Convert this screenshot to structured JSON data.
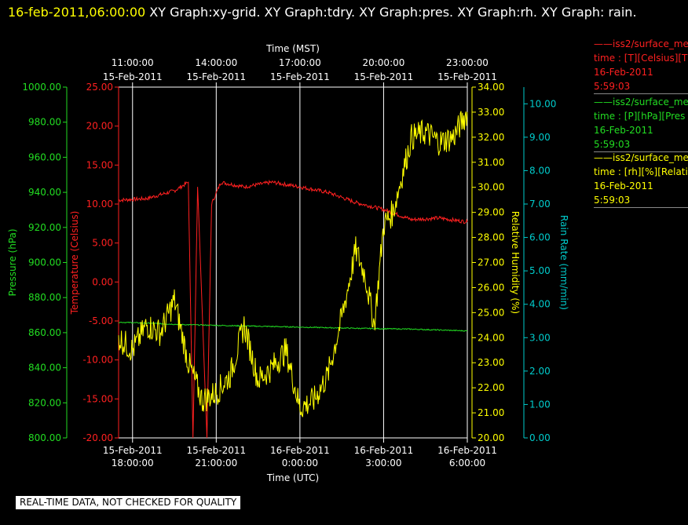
{
  "header": {
    "timestamp": "16-feb-2011,06:00:00",
    "title_rest": "  XY Graph:xy-grid.  XY Graph:tdry.  XY Graph:pres.  XY Graph:rh.  XY Graph: rain."
  },
  "banner": "REAL-TIME DATA, NOT CHECKED FOR QUALITY",
  "colors": {
    "temperature": "#ff2020",
    "pressure": "#22dd22",
    "humidity": "#ffff00",
    "rain": "#00cccc",
    "grid": "#ffffff",
    "text": "#ffffff"
  },
  "legend": [
    {
      "line1": "——iss2/surface_me",
      "line2": "time : [T][Celsius][T",
      "line3": "16-Feb-2011",
      "line4": "5:59:03",
      "color": "#ff2020"
    },
    {
      "line1": "——iss2/surface_me",
      "line2": "time : [P][hPa][Pres",
      "line3": "16-Feb-2011",
      "line4": "5:59:03",
      "color": "#22dd22"
    },
    {
      "line1": "——iss2/surface_me",
      "line2": "time : [rh][%][Relati",
      "line3": "16-Feb-2011",
      "line4": "5:59:03",
      "color": "#ffff00"
    }
  ],
  "chart_data": {
    "type": "line",
    "top_axis_label": "Time (MST)",
    "bottom_axis_label": "Time (UTC)",
    "x_range_utc": [
      "15-Feb-2011 17:30:00",
      "16-Feb-2011 06:00:00"
    ],
    "top_ticks": [
      {
        "time": "11:00:00",
        "date": "15-Feb-2011",
        "utc": "15-Feb-2011 18:00:00"
      },
      {
        "time": "14:00:00",
        "date": "15-Feb-2011",
        "utc": "15-Feb-2011 21:00:00"
      },
      {
        "time": "17:00:00",
        "date": "15-Feb-2011",
        "utc": "16-Feb-2011 00:00:00"
      },
      {
        "time": "20:00:00",
        "date": "15-Feb-2011",
        "utc": "16-Feb-2011 03:00:00"
      },
      {
        "time": "23:00:00",
        "date": "15-Feb-2011",
        "utc": "16-Feb-2011 06:00:00"
      }
    ],
    "bottom_ticks": [
      {
        "date": "15-Feb-2011",
        "time": "18:00:00",
        "utc": "15-Feb-2011 18:00:00"
      },
      {
        "date": "15-Feb-2011",
        "time": "21:00:00",
        "utc": "15-Feb-2011 21:00:00"
      },
      {
        "date": "16-Feb-2011",
        "time": "0:00:00",
        "utc": "16-Feb-2011 00:00:00"
      },
      {
        "date": "16-Feb-2011",
        "time": "3:00:00",
        "utc": "16-Feb-2011 03:00:00"
      },
      {
        "date": "16-Feb-2011",
        "time": "6:00:00",
        "utc": "16-Feb-2011 06:00:00"
      }
    ],
    "axes": {
      "pressure": {
        "label": "Pressure (hPa)",
        "range": [
          800,
          1000
        ],
        "ticks": [
          "800.00",
          "820.00",
          "840.00",
          "860.00",
          "880.00",
          "900.00",
          "920.00",
          "940.00",
          "960.00",
          "980.00",
          "1000.00"
        ]
      },
      "temperature": {
        "label": "Temperature (Celsius)",
        "range": [
          -20,
          25
        ],
        "ticks": [
          "-20.00",
          "-15.00",
          "-10.00",
          "-5.00",
          "0.00",
          "5.00",
          "10.00",
          "15.00",
          "20.00",
          "25.00"
        ]
      },
      "humidity": {
        "label": "Relative Humidity (%)",
        "range": [
          20,
          34
        ],
        "ticks": [
          "20.00",
          "21.00",
          "22.00",
          "23.00",
          "24.00",
          "25.00",
          "26.00",
          "27.00",
          "28.00",
          "29.00",
          "30.00",
          "31.00",
          "32.00",
          "33.00",
          "34.00"
        ]
      },
      "rain": {
        "label": "Rain Rate (mm/min)",
        "range": [
          0,
          10.5
        ],
        "ticks": [
          "0.00",
          "1.00",
          "2.00",
          "3.00",
          "4.00",
          "5.00",
          "6.00",
          "7.00",
          "8.00",
          "9.00",
          "10.00"
        ]
      }
    },
    "series": [
      {
        "name": "iss2/surface_me [T][Celsius]",
        "axis": "temperature",
        "x": [
          "15-Feb-2011 17:30",
          "15-Feb-2011 18:30",
          "15-Feb-2011 19:30",
          "15-Feb-2011 20:00",
          "15-Feb-2011 20:10",
          "15-Feb-2011 20:20",
          "15-Feb-2011 20:40",
          "15-Feb-2011 20:50",
          "15-Feb-2011 21:10",
          "15-Feb-2011 22:00",
          "15-Feb-2011 23:00",
          "16-Feb-2011 00:00",
          "16-Feb-2011 01:00",
          "16-Feb-2011 02:00",
          "16-Feb-2011 03:00",
          "16-Feb-2011 04:00",
          "16-Feb-2011 05:00",
          "16-Feb-2011 06:00"
        ],
        "y": [
          10.5,
          10.7,
          11.7,
          12.8,
          -20,
          12.2,
          -20,
          10.0,
          12.8,
          12.2,
          12.8,
          12.2,
          11.5,
          10.2,
          9.3,
          8.0,
          8.2,
          7.7
        ]
      },
      {
        "name": "iss2/surface_me [P][hPa]",
        "axis": "pressure",
        "x": [
          "15-Feb-2011 17:30",
          "15-Feb-2011 20:00",
          "15-Feb-2011 23:00",
          "16-Feb-2011 02:00",
          "16-Feb-2011 04:00",
          "16-Feb-2011 06:00"
        ],
        "y": [
          866,
          864.5,
          863.5,
          862.5,
          862,
          861
        ]
      },
      {
        "name": "iss2/surface_me [rh][%]",
        "axis": "humidity",
        "x": [
          "15-Feb-2011 17:30",
          "15-Feb-2011 18:00",
          "15-Feb-2011 18:30",
          "15-Feb-2011 19:00",
          "15-Feb-2011 19:30",
          "15-Feb-2011 20:00",
          "15-Feb-2011 20:30",
          "15-Feb-2011 21:00",
          "15-Feb-2011 21:30",
          "15-Feb-2011 22:00",
          "15-Feb-2011 22:30",
          "15-Feb-2011 23:00",
          "15-Feb-2011 23:30",
          "16-Feb-2011 00:00",
          "16-Feb-2011 00:30",
          "16-Feb-2011 01:00",
          "16-Feb-2011 01:30",
          "16-Feb-2011 02:00",
          "16-Feb-2011 02:20",
          "16-Feb-2011 02:40",
          "16-Feb-2011 03:00",
          "16-Feb-2011 03:20",
          "16-Feb-2011 03:40",
          "16-Feb-2011 04:00",
          "16-Feb-2011 04:30",
          "16-Feb-2011 05:00",
          "16-Feb-2011 05:30",
          "16-Feb-2011 06:00"
        ],
        "y": [
          24.0,
          23.5,
          24.5,
          24.2,
          25.5,
          23.0,
          21.5,
          21.8,
          22.5,
          24.5,
          22.3,
          22.8,
          23.5,
          21.2,
          21.5,
          22.5,
          24.8,
          27.5,
          26.5,
          24.5,
          28.5,
          29.0,
          30.5,
          32.0,
          32.2,
          31.8,
          32.0,
          33.0
        ]
      }
    ]
  }
}
